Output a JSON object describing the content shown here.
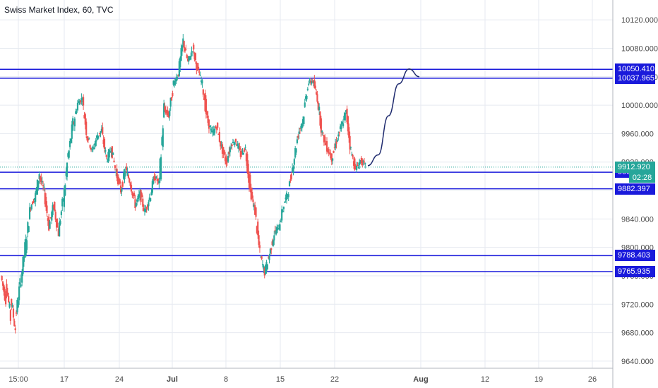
{
  "chart_title": "Swiss Market Index, 60, TVC",
  "chart_data": {
    "type": "candlestick",
    "title": "Swiss Market Index, 60, TVC",
    "ylim": [
      9630,
      10140
    ],
    "y_ticks": [
      9640,
      9680,
      9720,
      9760,
      9800,
      9840,
      9880,
      9920,
      9960,
      10000,
      10040,
      10080,
      10120
    ],
    "y_tick_labels": [
      "9640.000",
      "9680.000",
      "9720.000",
      "9760.000",
      "9800.000",
      "9840.000",
      "9880.000",
      "9920.000",
      "9960.000",
      "10000.000",
      "10040.000",
      "10080.000",
      "10120.000"
    ],
    "x_ticks": [
      "15:00",
      "17",
      "24",
      "Jul",
      "8",
      "15",
      "22",
      "Aug",
      "12",
      "19",
      "26"
    ],
    "colors": {
      "up": "#26a69a",
      "down": "#ef5350",
      "level_line": "#1a1adb",
      "grid": "#e6eaf0",
      "price_line": "#26a69a",
      "projection": "#1e2a6e"
    },
    "price_path": [
      [
        9760,
        9725
      ],
      [
        9755,
        9700
      ],
      [
        9730,
        9685
      ],
      [
        9700,
        9750
      ],
      [
        9745,
        9800
      ],
      [
        9795,
        9850
      ],
      [
        9855,
        9870
      ],
      [
        9865,
        9905
      ],
      [
        9900,
        9880
      ],
      [
        9878,
        9830
      ],
      [
        9830,
        9860
      ],
      [
        9858,
        9820
      ],
      [
        9822,
        9870
      ],
      [
        9865,
        9930
      ],
      [
        9925,
        9975
      ],
      [
        9970,
        10003
      ],
      [
        10003,
        10010
      ],
      [
        10005,
        9955
      ],
      [
        9958,
        9935
      ],
      [
        9935,
        9955
      ],
      [
        9955,
        9965
      ],
      [
        9962,
        9925
      ],
      [
        9922,
        9940
      ],
      [
        9940,
        9905
      ],
      [
        9905,
        9880
      ],
      [
        9880,
        9910
      ],
      [
        9910,
        9890
      ],
      [
        9890,
        9860
      ],
      [
        9860,
        9875
      ],
      [
        9875,
        9850
      ],
      [
        9850,
        9870
      ],
      [
        9868,
        9900
      ],
      [
        9900,
        9890
      ],
      [
        9890,
        9995
      ],
      [
        9995,
        9985
      ],
      [
        9985,
        10030
      ],
      [
        10030,
        10045
      ],
      [
        10045,
        10090
      ],
      [
        10090,
        10060
      ],
      [
        10060,
        10080
      ],
      [
        10080,
        10050
      ],
      [
        10050,
        10030
      ],
      [
        10030,
        9980
      ],
      [
        9980,
        9960
      ],
      [
        9960,
        9970
      ],
      [
        9970,
        9940
      ],
      [
        9940,
        9920
      ],
      [
        9920,
        9945
      ],
      [
        9945,
        9950
      ],
      [
        9950,
        9930
      ],
      [
        9930,
        9940
      ],
      [
        9940,
        9880
      ],
      [
        9880,
        9850
      ],
      [
        9850,
        9790
      ],
      [
        9790,
        9765
      ],
      [
        9765,
        9790
      ],
      [
        9790,
        9820
      ],
      [
        9820,
        9830
      ],
      [
        9830,
        9860
      ],
      [
        9860,
        9880
      ],
      [
        9880,
        9920
      ],
      [
        9920,
        9960
      ],
      [
        9960,
        9980
      ],
      [
        9980,
        10030
      ],
      [
        10030,
        10035
      ],
      [
        10035,
        10010
      ],
      [
        10010,
        9960
      ],
      [
        9960,
        9940
      ],
      [
        9940,
        9925
      ],
      [
        9925,
        9950
      ],
      [
        9950,
        9970
      ],
      [
        9970,
        9990
      ],
      [
        9990,
        9935
      ],
      [
        9935,
        9910
      ],
      [
        9910,
        9922
      ],
      [
        9922,
        9915
      ]
    ],
    "horizontal_levels": [
      {
        "value": 10050.41,
        "label": "10050.410"
      },
      {
        "value": 10037.965,
        "label": "10037.965"
      },
      {
        "value": 9905.732,
        "label": "9905.732"
      },
      {
        "value": 9882.397,
        "label": "9882.397"
      },
      {
        "value": 9788.403,
        "label": "9788.403"
      },
      {
        "value": 9765.935,
        "label": "9765.935"
      }
    ],
    "current_price": {
      "value": 9912.92,
      "label": "9912.920",
      "countdown": "02:28"
    },
    "projection_path": [
      [
        0,
        9915
      ],
      [
        0.2,
        9930
      ],
      [
        0.4,
        9985
      ],
      [
        0.6,
        10030
      ],
      [
        0.8,
        10051
      ],
      [
        1.0,
        10040
      ]
    ]
  }
}
